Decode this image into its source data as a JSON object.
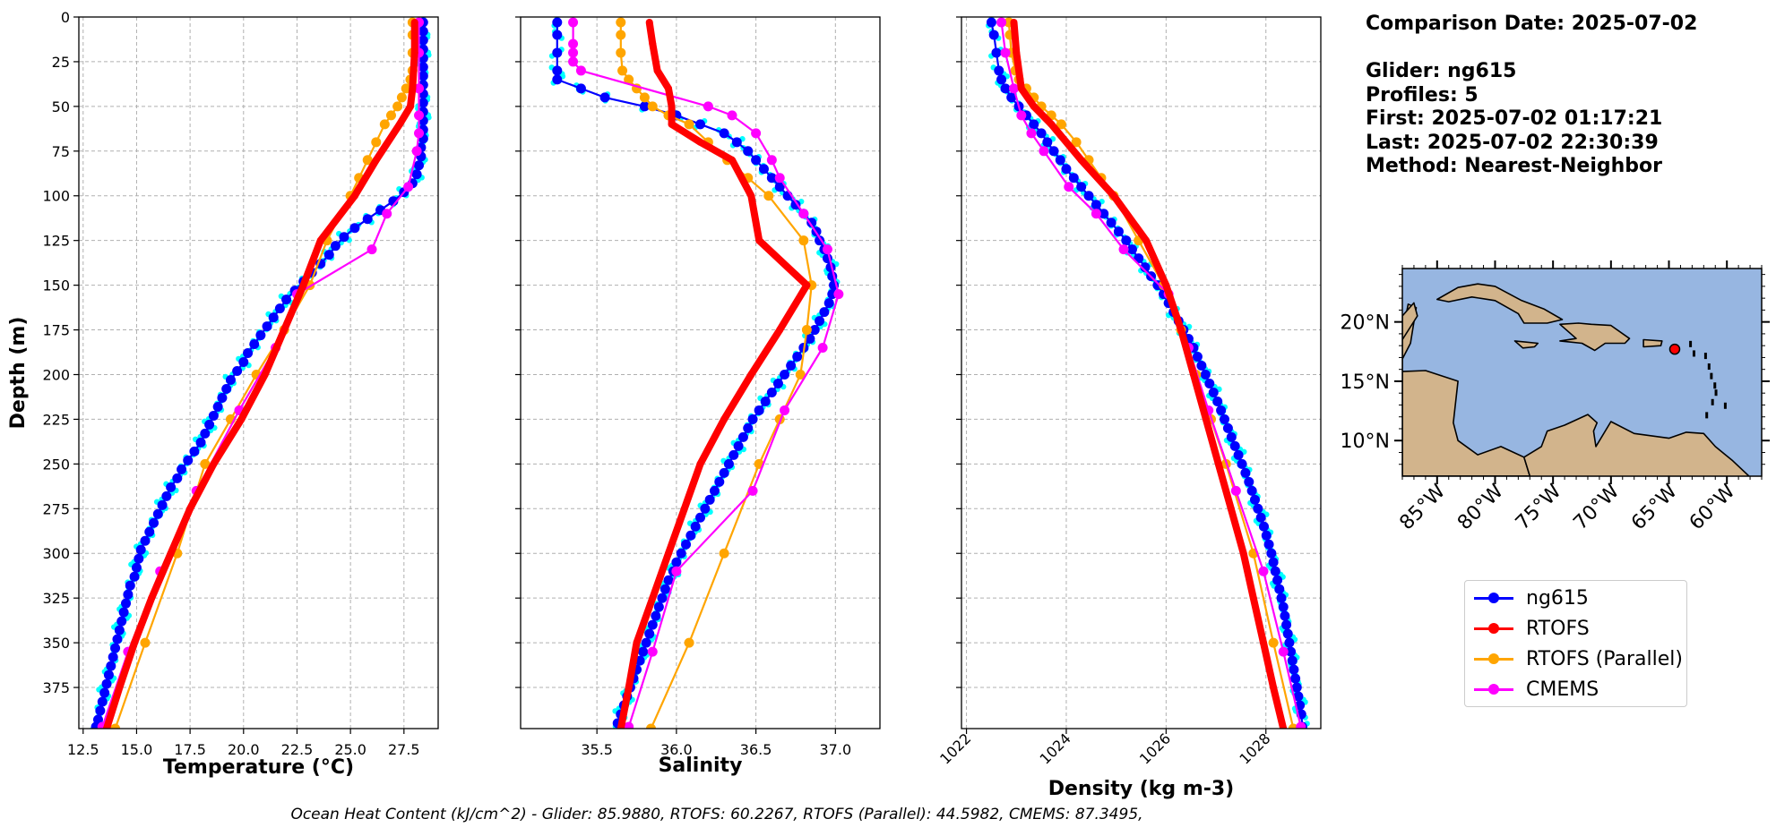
{
  "chart_data": [
    {
      "type": "line",
      "panel": "temperature",
      "xlabel": "Temperature (°C)",
      "ylabel": "Depth (m)",
      "xlim": [
        12.3,
        29.1
      ],
      "ylim": [
        398,
        0
      ],
      "xticks": [
        "12.5",
        "15.0",
        "17.5",
        "20.0",
        "22.5",
        "25.0",
        "27.5"
      ],
      "xtick_values": [
        12.5,
        15,
        17.5,
        20,
        22.5,
        25,
        27.5
      ],
      "yticks": [
        "0",
        "25",
        "50",
        "75",
        "100",
        "125",
        "150",
        "175",
        "200",
        "225",
        "250",
        "275",
        "300",
        "325",
        "350",
        "375"
      ],
      "grid": true,
      "series": [
        {
          "name": "ng615",
          "color": "#0000ff",
          "depth": [
            3,
            8,
            13,
            18,
            23,
            28,
            33,
            38,
            43,
            48,
            53,
            58,
            63,
            68,
            73,
            78,
            83,
            88,
            93,
            98,
            103,
            108,
            113,
            118,
            123,
            128,
            133,
            138,
            143,
            148,
            153,
            158,
            163,
            168,
            173,
            178,
            183,
            188,
            193,
            198,
            203,
            208,
            213,
            218,
            223,
            228,
            233,
            238,
            243,
            248,
            253,
            258,
            263,
            268,
            273,
            278,
            283,
            288,
            293,
            298,
            303,
            308,
            313,
            318,
            323,
            328,
            333,
            338,
            343,
            348,
            353,
            358,
            363,
            368,
            373,
            378,
            383,
            388,
            393,
            397
          ],
          "values": [
            28.4,
            28.4,
            28.4,
            28.4,
            28.4,
            28.4,
            28.4,
            28.4,
            28.4,
            28.4,
            28.4,
            28.4,
            28.4,
            28.4,
            28.3,
            28.3,
            28.2,
            28.1,
            27.9,
            27.5,
            27.0,
            26.4,
            25.8,
            25.2,
            24.7,
            24.3,
            24.0,
            23.6,
            23.2,
            22.8,
            22.4,
            22.0,
            21.7,
            21.4,
            21.1,
            20.8,
            20.5,
            20.2,
            20.0,
            19.7,
            19.4,
            19.2,
            19.0,
            18.8,
            18.6,
            18.4,
            18.2,
            18.0,
            17.7,
            17.4,
            17.1,
            16.9,
            16.6,
            16.4,
            16.2,
            16.0,
            15.8,
            15.6,
            15.4,
            15.2,
            15.1,
            15.0,
            14.9,
            14.7,
            14.6,
            14.5,
            14.4,
            14.3,
            14.2,
            14.1,
            14.0,
            13.9,
            13.8,
            13.7,
            13.6,
            13.5,
            13.4,
            13.3,
            13.2,
            13.1
          ]
        },
        {
          "name": "RTOFS",
          "color": "#ff0000",
          "depth": [
            3,
            20,
            40,
            50,
            60,
            80,
            100,
            125,
            150,
            175,
            200,
            225,
            250,
            275,
            300,
            325,
            350,
            375,
            398
          ],
          "values": [
            28.0,
            28.0,
            27.9,
            27.8,
            27.3,
            26.2,
            25.2,
            23.6,
            22.8,
            21.9,
            21.0,
            19.9,
            18.6,
            17.5,
            16.6,
            15.7,
            14.9,
            14.2,
            13.6
          ]
        },
        {
          "name": "RTOFS (Parallel)",
          "color": "#ffa500",
          "depth": [
            3,
            10,
            20,
            30,
            35,
            40,
            45,
            50,
            55,
            60,
            70,
            80,
            90,
            100,
            125,
            150,
            175,
            200,
            225,
            250,
            300,
            350,
            398
          ],
          "values": [
            27.9,
            27.9,
            27.9,
            27.9,
            27.8,
            27.6,
            27.4,
            27.2,
            26.9,
            26.6,
            26.2,
            25.8,
            25.4,
            25.0,
            23.9,
            23.1,
            21.9,
            20.6,
            19.4,
            18.2,
            16.9,
            15.4,
            14.0
          ]
        },
        {
          "name": "CMEMS",
          "color": "#ff00ff",
          "depth": [
            3,
            20,
            40,
            55,
            65,
            75,
            95,
            110,
            130,
            155,
            185,
            220,
            265,
            310,
            355,
            397
          ],
          "values": [
            28.2,
            28.2,
            28.2,
            28.2,
            28.2,
            28.1,
            27.7,
            26.7,
            26.0,
            22.5,
            21.5,
            19.8,
            17.8,
            16.1,
            14.6,
            13.4
          ]
        }
      ]
    },
    {
      "type": "line",
      "panel": "salinity",
      "xlabel": "Salinity",
      "xlim": [
        35.02,
        37.28
      ],
      "ylim": [
        398,
        0
      ],
      "xticks": [
        "35.5",
        "36.0",
        "36.5",
        "37.0"
      ],
      "xtick_values": [
        35.5,
        36.0,
        36.5,
        37.0
      ],
      "grid": true,
      "series": [
        {
          "name": "ng615",
          "color": "#0000ff",
          "depth": [
            3,
            10,
            20,
            30,
            35,
            40,
            45,
            50,
            55,
            60,
            65,
            70,
            75,
            80,
            85,
            90,
            95,
            100,
            105,
            110,
            115,
            120,
            125,
            130,
            135,
            140,
            145,
            150,
            155,
            160,
            165,
            170,
            175,
            180,
            185,
            190,
            195,
            200,
            205,
            210,
            215,
            220,
            225,
            230,
            235,
            240,
            245,
            250,
            255,
            260,
            265,
            270,
            275,
            280,
            285,
            290,
            295,
            300,
            305,
            310,
            315,
            320,
            325,
            330,
            335,
            340,
            345,
            350,
            355,
            360,
            365,
            370,
            375,
            380,
            385,
            390,
            395
          ],
          "values": [
            35.25,
            35.25,
            35.25,
            35.25,
            35.25,
            35.4,
            35.55,
            35.8,
            36.0,
            36.15,
            36.3,
            36.38,
            36.45,
            36.5,
            36.55,
            36.6,
            36.65,
            36.7,
            36.75,
            36.8,
            36.85,
            36.88,
            36.9,
            36.93,
            36.95,
            36.97,
            36.98,
            36.99,
            36.98,
            36.96,
            36.93,
            36.9,
            36.87,
            36.84,
            36.8,
            36.76,
            36.72,
            36.68,
            36.64,
            36.6,
            36.56,
            36.52,
            36.48,
            36.45,
            36.42,
            36.39,
            36.36,
            36.33,
            36.3,
            36.27,
            36.24,
            36.21,
            36.18,
            36.15,
            36.12,
            36.09,
            36.06,
            36.03,
            36.0,
            35.98,
            35.95,
            35.93,
            35.91,
            35.89,
            35.87,
            35.85,
            35.83,
            35.81,
            35.79,
            35.77,
            35.75,
            35.73,
            35.71,
            35.69,
            35.67,
            35.65,
            35.63
          ]
        },
        {
          "name": "RTOFS",
          "color": "#ff0000",
          "depth": [
            3,
            15,
            30,
            40,
            50,
            60,
            70,
            80,
            100,
            125,
            150,
            175,
            200,
            225,
            250,
            275,
            300,
            325,
            350,
            375,
            398
          ],
          "values": [
            35.83,
            35.85,
            35.88,
            35.95,
            35.97,
            35.97,
            36.15,
            36.35,
            36.47,
            36.52,
            36.82,
            36.65,
            36.47,
            36.3,
            36.15,
            36.05,
            35.95,
            35.85,
            35.75,
            35.7,
            35.65
          ]
        },
        {
          "name": "RTOFS (Parallel)",
          "color": "#ffa500",
          "depth": [
            3,
            10,
            20,
            30,
            35,
            40,
            45,
            50,
            55,
            60,
            70,
            80,
            90,
            100,
            125,
            150,
            175,
            200,
            225,
            250,
            300,
            350,
            398
          ],
          "values": [
            35.65,
            35.65,
            35.65,
            35.66,
            35.7,
            35.75,
            35.8,
            35.85,
            35.95,
            36.08,
            36.2,
            36.32,
            36.45,
            36.58,
            36.8,
            36.85,
            36.82,
            36.78,
            36.65,
            36.52,
            36.3,
            36.08,
            35.84
          ]
        },
        {
          "name": "CMEMS",
          "color": "#ff00ff",
          "depth": [
            3,
            15,
            20,
            25,
            30,
            50,
            55,
            65,
            80,
            90,
            110,
            130,
            155,
            185,
            220,
            265,
            310,
            355,
            397
          ],
          "values": [
            35.35,
            35.35,
            35.35,
            35.35,
            35.4,
            36.2,
            36.35,
            36.5,
            36.6,
            36.65,
            36.8,
            36.95,
            37.02,
            36.92,
            36.68,
            36.48,
            36.0,
            35.85,
            35.7
          ]
        }
      ]
    },
    {
      "type": "line",
      "panel": "density",
      "xlabel": "Density (kg m-3)",
      "xlim": [
        1021.9,
        1029.1
      ],
      "ylim": [
        398,
        0
      ],
      "xticks": [
        "1022",
        "1024",
        "1026",
        "1028"
      ],
      "xtick_values": [
        1022,
        1024,
        1026,
        1028
      ],
      "grid": true,
      "series": [
        {
          "name": "ng615",
          "color": "#0000ff",
          "depth": [
            3,
            10,
            20,
            30,
            35,
            40,
            45,
            50,
            55,
            60,
            65,
            70,
            75,
            80,
            85,
            90,
            95,
            100,
            105,
            110,
            115,
            120,
            125,
            130,
            135,
            140,
            145,
            150,
            155,
            160,
            165,
            170,
            175,
            180,
            185,
            190,
            195,
            200,
            205,
            210,
            215,
            220,
            225,
            230,
            235,
            240,
            245,
            250,
            255,
            260,
            265,
            270,
            275,
            280,
            285,
            290,
            295,
            300,
            305,
            310,
            315,
            320,
            325,
            330,
            335,
            340,
            345,
            350,
            355,
            360,
            365,
            370,
            375,
            380,
            385,
            390,
            397
          ],
          "values": [
            1022.5,
            1022.55,
            1022.6,
            1022.65,
            1022.7,
            1022.78,
            1022.9,
            1023.05,
            1023.2,
            1023.35,
            1023.5,
            1023.62,
            1023.75,
            1023.88,
            1024.0,
            1024.15,
            1024.3,
            1024.45,
            1024.6,
            1024.75,
            1024.9,
            1025.05,
            1025.2,
            1025.32,
            1025.45,
            1025.58,
            1025.7,
            1025.83,
            1025.95,
            1026.05,
            1026.15,
            1026.25,
            1026.35,
            1026.45,
            1026.55,
            1026.63,
            1026.71,
            1026.79,
            1026.87,
            1026.95,
            1027.03,
            1027.1,
            1027.17,
            1027.24,
            1027.31,
            1027.38,
            1027.45,
            1027.52,
            1027.59,
            1027.66,
            1027.72,
            1027.78,
            1027.84,
            1027.9,
            1027.96,
            1028.01,
            1028.06,
            1028.11,
            1028.15,
            1028.19,
            1028.23,
            1028.27,
            1028.31,
            1028.35,
            1028.38,
            1028.41,
            1028.44,
            1028.47,
            1028.5,
            1028.53,
            1028.56,
            1028.59,
            1028.62,
            1028.65,
            1028.68,
            1028.71,
            1028.73
          ]
        },
        {
          "name": "RTOFS",
          "color": "#ff0000",
          "depth": [
            3,
            20,
            40,
            50,
            60,
            80,
            100,
            125,
            150,
            175,
            200,
            225,
            250,
            275,
            300,
            325,
            350,
            375,
            398
          ],
          "values": [
            1022.95,
            1023.0,
            1023.1,
            1023.35,
            1023.7,
            1024.3,
            1024.95,
            1025.6,
            1026.0,
            1026.3,
            1026.55,
            1026.8,
            1027.05,
            1027.3,
            1027.55,
            1027.75,
            1027.95,
            1028.15,
            1028.35
          ]
        },
        {
          "name": "RTOFS (Parallel)",
          "color": "#ffa500",
          "depth": [
            3,
            10,
            20,
            30,
            35,
            40,
            45,
            50,
            55,
            60,
            70,
            80,
            90,
            100,
            125,
            150,
            175,
            200,
            225,
            250,
            300,
            350,
            398
          ],
          "values": [
            1022.85,
            1022.87,
            1022.9,
            1022.98,
            1023.05,
            1023.2,
            1023.35,
            1023.5,
            1023.7,
            1023.9,
            1024.2,
            1024.45,
            1024.7,
            1024.95,
            1025.45,
            1025.95,
            1026.3,
            1026.6,
            1026.9,
            1027.2,
            1027.75,
            1028.15,
            1028.55
          ]
        },
        {
          "name": "CMEMS",
          "color": "#ff00ff",
          "depth": [
            3,
            20,
            40,
            55,
            65,
            75,
            95,
            110,
            130,
            155,
            185,
            220,
            265,
            310,
            355,
            397
          ],
          "values": [
            1022.7,
            1022.78,
            1022.95,
            1023.1,
            1023.3,
            1023.55,
            1024.05,
            1024.6,
            1025.15,
            1026.05,
            1026.45,
            1026.85,
            1027.4,
            1027.95,
            1028.35,
            1028.7
          ]
        }
      ]
    }
  ],
  "legend": {
    "placement": "lower-right",
    "items": [
      {
        "label": "ng615",
        "color": "#0000ff"
      },
      {
        "label": "RTOFS",
        "color": "#ff0000"
      },
      {
        "label": "RTOFS (Parallel)",
        "color": "#ffa500"
      },
      {
        "label": "CMEMS",
        "color": "#ff00ff"
      }
    ]
  },
  "info": {
    "date": "Comparison Date: 2025-07-02",
    "glider": "Glider: ng615",
    "profiles": "Profiles: 5",
    "first": "First: 2025-07-02 01:17:21",
    "last": "Last: 2025-07-02 22:30:39",
    "method": "Method: Nearest-Neighbor"
  },
  "map": {
    "lat_ticks": [
      "20°N",
      "15°N",
      "10°N"
    ],
    "lat_values": [
      20,
      15,
      10
    ],
    "lon_ticks": [
      "85°W",
      "80°W",
      "75°W",
      "70°W",
      "65°W",
      "60°W"
    ],
    "lon_values": [
      -85,
      -80,
      -75,
      -70,
      -65,
      -60
    ],
    "lon_range": [
      -88,
      -57
    ],
    "lat_range": [
      7,
      24.5
    ],
    "marker": {
      "lon": -64.5,
      "lat": 17.7
    },
    "ocean_color": "#97b6e1",
    "land_color": "#d2b48c"
  },
  "footer": "Ocean Heat Content (kJ/cm^2) - Glider: 85.9880,  RTOFS: 60.2267,  RTOFS (Parallel): 44.5982,  CMEMS: 87.3495,"
}
